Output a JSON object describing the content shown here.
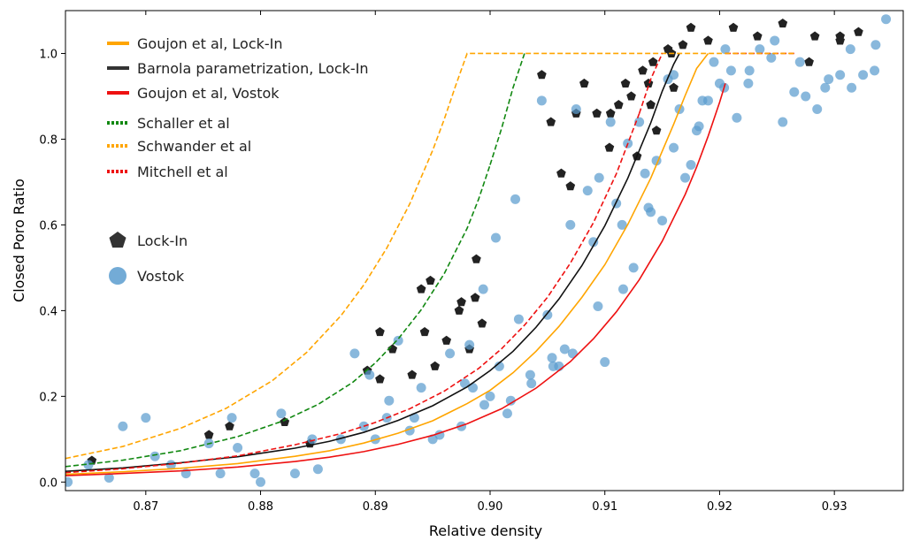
{
  "chart_data": {
    "type": "scatter",
    "xlabel": "Relative density",
    "ylabel": "Closed Poro Ratio",
    "xlim": [
      0.863,
      0.936
    ],
    "ylim": [
      -0.02,
      1.1
    ],
    "xticks": [
      0.87,
      0.88,
      0.89,
      0.9,
      0.91,
      0.92,
      0.93
    ],
    "xtick_labels": [
      "0.87",
      "0.88",
      "0.89",
      "0.90",
      "0.91",
      "0.92",
      "0.93"
    ],
    "yticks": [
      0.0,
      0.2,
      0.4,
      0.6,
      0.8,
      1.0
    ],
    "ytick_labels": [
      "0.0",
      "0.2",
      "0.4",
      "0.6",
      "0.8",
      "1.0"
    ],
    "grid": false,
    "legend_placement": "upper-left",
    "series": [
      {
        "name": "Goujon et al, Lock-In",
        "kind": "line",
        "style": "solid",
        "color": "#ffa500",
        "x": [
          0.863,
          0.868,
          0.873,
          0.878,
          0.883,
          0.886,
          0.889,
          0.892,
          0.895,
          0.898,
          0.9,
          0.902,
          0.904,
          0.906,
          0.908,
          0.91,
          0.912,
          0.914,
          0.916,
          0.917,
          0.918,
          0.919
        ],
        "y": [
          0.018,
          0.024,
          0.032,
          0.043,
          0.06,
          0.073,
          0.091,
          0.114,
          0.143,
          0.183,
          0.214,
          0.255,
          0.305,
          0.363,
          0.431,
          0.507,
          0.601,
          0.709,
          0.835,
          0.902,
          0.965,
          1.0
        ]
      },
      {
        "name": "Barnola parametrization, Lock-In",
        "kind": "line",
        "style": "solid",
        "color": "#111111",
        "x": [
          0.863,
          0.868,
          0.873,
          0.878,
          0.883,
          0.886,
          0.889,
          0.892,
          0.895,
          0.898,
          0.9,
          0.902,
          0.904,
          0.906,
          0.908,
          0.91,
          0.912,
          0.914,
          0.915,
          0.916,
          0.9165
        ],
        "y": [
          0.025,
          0.033,
          0.045,
          0.059,
          0.079,
          0.095,
          0.116,
          0.144,
          0.178,
          0.222,
          0.26,
          0.305,
          0.361,
          0.427,
          0.505,
          0.598,
          0.709,
          0.838,
          0.912,
          0.975,
          1.0
        ]
      },
      {
        "name": "Goujon et al, Vostok",
        "kind": "line",
        "style": "solid",
        "color": "#ee1111",
        "x": [
          0.863,
          0.868,
          0.873,
          0.878,
          0.883,
          0.886,
          0.889,
          0.892,
          0.895,
          0.898,
          0.901,
          0.904,
          0.907,
          0.909,
          0.911,
          0.913,
          0.915,
          0.917,
          0.918,
          0.919,
          0.92,
          0.9205
        ],
        "y": [
          0.015,
          0.02,
          0.026,
          0.035,
          0.048,
          0.058,
          0.071,
          0.088,
          0.109,
          0.136,
          0.171,
          0.219,
          0.281,
          0.334,
          0.397,
          0.472,
          0.562,
          0.671,
          0.735,
          0.807,
          0.886,
          0.93
        ]
      },
      {
        "name": "",
        "kind": "line",
        "style": "dashed",
        "color": "#ee1111",
        "x": [
          0.9205,
          0.9265
        ],
        "y": [
          1.0,
          1.0
        ]
      },
      {
        "name": "Schaller et al",
        "kind": "line",
        "style": "dashed",
        "color": "#118811",
        "x": [
          0.863,
          0.868,
          0.873,
          0.878,
          0.882,
          0.885,
          0.888,
          0.89,
          0.892,
          0.894,
          0.896,
          0.898,
          0.899,
          0.9
        ],
        "y": [
          0.036,
          0.051,
          0.073,
          0.106,
          0.143,
          0.181,
          0.232,
          0.278,
          0.334,
          0.402,
          0.486,
          0.592,
          0.66,
          0.74
        ]
      },
      {
        "name": "",
        "kind": "line",
        "style": "dashed",
        "color": "#118811",
        "x": [
          0.9,
          0.901,
          0.902,
          0.903
        ],
        "y": [
          0.74,
          0.825,
          0.92,
          1.0
        ]
      },
      {
        "name": "Schwander et al",
        "kind": "line",
        "style": "dashed",
        "color": "#ffa500",
        "x": [
          0.863,
          0.868,
          0.873,
          0.877,
          0.881,
          0.884,
          0.887,
          0.889,
          0.891,
          0.893,
          0.895,
          0.896,
          0.897,
          0.898,
          0.9265
        ],
        "y": [
          0.055,
          0.083,
          0.125,
          0.172,
          0.236,
          0.302,
          0.388,
          0.46,
          0.546,
          0.649,
          0.774,
          0.846,
          0.925,
          1.0,
          1.0
        ]
      },
      {
        "name": "Mitchell et al",
        "kind": "line",
        "style": "dashed",
        "color": "#ee1111",
        "x": [
          0.863,
          0.868,
          0.873,
          0.878,
          0.883,
          0.887,
          0.89,
          0.893,
          0.896,
          0.899,
          0.901,
          0.903,
          0.905,
          0.907,
          0.909,
          0.911,
          0.913
        ],
        "y": [
          0.022,
          0.031,
          0.044,
          0.061,
          0.087,
          0.113,
          0.139,
          0.171,
          0.212,
          0.265,
          0.311,
          0.366,
          0.431,
          0.511,
          0.605,
          0.719,
          0.86
        ]
      },
      {
        "name": "",
        "kind": "line",
        "style": "dashed",
        "color": "#ee1111",
        "x": [
          0.913,
          0.914,
          0.915
        ],
        "y": [
          0.86,
          0.94,
          1.0
        ]
      },
      {
        "name": "Lock-In",
        "kind": "scatter",
        "marker": "pentagon",
        "color": "#222222",
        "x": [
          0.8653,
          0.8755,
          0.8773,
          0.8821,
          0.8843,
          0.8904,
          0.8893,
          0.8915,
          0.8904,
          0.8932,
          0.8943,
          0.8952,
          0.8962,
          0.8948,
          0.894,
          0.8973,
          0.8975,
          0.8987,
          0.8993,
          0.8982,
          0.8988,
          0.9045,
          0.9053,
          0.9062,
          0.907,
          0.9075,
          0.9082,
          0.9093,
          0.9105,
          0.9112,
          0.9118,
          0.9123,
          0.9133,
          0.9138,
          0.9142,
          0.9145,
          0.9158,
          0.9155,
          0.9168,
          0.9175,
          0.919,
          0.9212,
          0.9233,
          0.9255,
          0.9283,
          0.9305,
          0.9321,
          0.9278,
          0.9305,
          0.914,
          0.9104,
          0.9128,
          0.916
        ],
        "y": [
          0.05,
          0.11,
          0.13,
          0.14,
          0.09,
          0.35,
          0.26,
          0.31,
          0.24,
          0.25,
          0.35,
          0.27,
          0.33,
          0.47,
          0.45,
          0.4,
          0.42,
          0.43,
          0.37,
          0.31,
          0.52,
          0.95,
          0.84,
          0.72,
          0.69,
          0.86,
          0.93,
          0.86,
          0.86,
          0.88,
          0.93,
          0.9,
          0.96,
          0.93,
          0.98,
          0.82,
          1.0,
          1.01,
          1.02,
          1.06,
          1.03,
          1.06,
          1.04,
          1.07,
          1.04,
          1.04,
          1.05,
          0.98,
          1.03,
          0.88,
          0.78,
          0.76,
          0.92
        ]
      },
      {
        "name": "Vostok",
        "kind": "scatter",
        "marker": "circle",
        "color": "#5b9ccf",
        "x": [
          0.8632,
          0.865,
          0.8668,
          0.868,
          0.87,
          0.8708,
          0.8722,
          0.8735,
          0.8755,
          0.8765,
          0.8775,
          0.878,
          0.8795,
          0.88,
          0.8818,
          0.883,
          0.8845,
          0.885,
          0.887,
          0.8882,
          0.8895,
          0.89,
          0.891,
          0.892,
          0.893,
          0.894,
          0.895,
          0.8965,
          0.8975,
          0.8985,
          0.8995,
          0.9005,
          0.9015,
          0.9025,
          0.9035,
          0.9045,
          0.9055,
          0.9065,
          0.9075,
          0.9085,
          0.9095,
          0.9105,
          0.9115,
          0.9125,
          0.9135,
          0.9145,
          0.9155,
          0.9165,
          0.9175,
          0.9185,
          0.9195,
          0.9205,
          0.9215,
          0.9225,
          0.9235,
          0.9245,
          0.9255,
          0.9265,
          0.9275,
          0.9285,
          0.9295,
          0.9305,
          0.9315,
          0.9325,
          0.9335,
          0.9345,
          0.8982,
          0.8994,
          0.9008,
          0.9022,
          0.905,
          0.906,
          0.907,
          0.909,
          0.91,
          0.911,
          0.912,
          0.913,
          0.914,
          0.915,
          0.916,
          0.917,
          0.918,
          0.919,
          0.92,
          0.921,
          0.889,
          0.8912,
          0.8934,
          0.8956,
          0.8978,
          0.9,
          0.9018,
          0.9036,
          0.9054,
          0.9072,
          0.9094,
          0.9116,
          0.9138,
          0.916,
          0.9182,
          0.9204,
          0.9226,
          0.9248,
          0.927,
          0.9292,
          0.9314,
          0.9336
        ],
        "y": [
          0.0,
          0.04,
          0.01,
          0.13,
          0.15,
          0.06,
          0.04,
          0.02,
          0.09,
          0.02,
          0.15,
          0.08,
          0.02,
          0.0,
          0.16,
          0.02,
          0.1,
          0.03,
          0.1,
          0.3,
          0.25,
          0.1,
          0.15,
          0.33,
          0.12,
          0.22,
          0.1,
          0.3,
          0.13,
          0.22,
          0.18,
          0.57,
          0.16,
          0.38,
          0.25,
          0.89,
          0.27,
          0.31,
          0.87,
          0.68,
          0.71,
          0.84,
          0.6,
          0.5,
          0.72,
          0.75,
          0.94,
          0.87,
          0.74,
          0.89,
          0.98,
          1.01,
          0.85,
          0.93,
          1.01,
          0.99,
          0.84,
          0.91,
          0.9,
          0.87,
          0.94,
          0.95,
          0.92,
          0.95,
          0.96,
          1.08,
          0.32,
          0.45,
          0.27,
          0.66,
          0.39,
          0.27,
          0.6,
          0.56,
          0.28,
          0.65,
          0.79,
          0.84,
          0.63,
          0.61,
          0.95,
          0.71,
          0.82,
          0.89,
          0.93,
          0.96,
          0.13,
          0.19,
          0.15,
          0.11,
          0.23,
          0.2,
          0.19,
          0.23,
          0.29,
          0.3,
          0.41,
          0.45,
          0.64,
          0.78,
          0.83,
          0.92,
          0.96,
          1.03,
          0.98,
          0.92,
          1.01,
          1.02
        ]
      }
    ],
    "legend": [
      {
        "label": "Goujon et al, Lock-In",
        "swatch": "solid",
        "color": "#ffa500"
      },
      {
        "label": "Barnola parametrization, Lock-In",
        "swatch": "solid",
        "color": "#333333"
      },
      {
        "label": "Goujon et al, Vostok",
        "swatch": "solid",
        "color": "#ee1111"
      },
      {
        "label": "Schaller et al",
        "swatch": "dotted",
        "color": "#118811"
      },
      {
        "label": "Schwander et al",
        "swatch": "dotted",
        "color": "#ffa500"
      },
      {
        "label": "Mitchell et al",
        "swatch": "dotted",
        "color": "#ee1111"
      },
      {
        "label": "Lock-In",
        "swatch": "pentagon",
        "color": "#333333"
      },
      {
        "label": "Vostok",
        "swatch": "circle",
        "color": "#5b9ccf"
      }
    ]
  }
}
